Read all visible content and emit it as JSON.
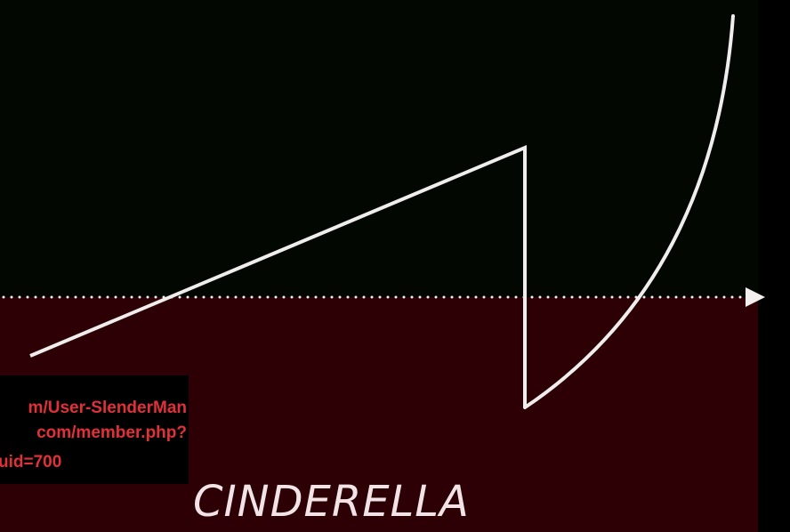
{
  "colors": {
    "top_background": "#020702",
    "bottom_background": "#2c0005",
    "line": "#f0eded",
    "dotted_line": "#f5f0f0",
    "url_text": "#e2303a",
    "caption_text": "#f1e3e6"
  },
  "arrow": {
    "icon": "arrow-right-icon",
    "style": "dotted"
  },
  "source_box": {
    "lines": [
      "m/User-SlenderMan",
      "com/member.php?",
      "uid=700"
    ]
  },
  "caption": {
    "text": "CINDERELLA"
  }
}
